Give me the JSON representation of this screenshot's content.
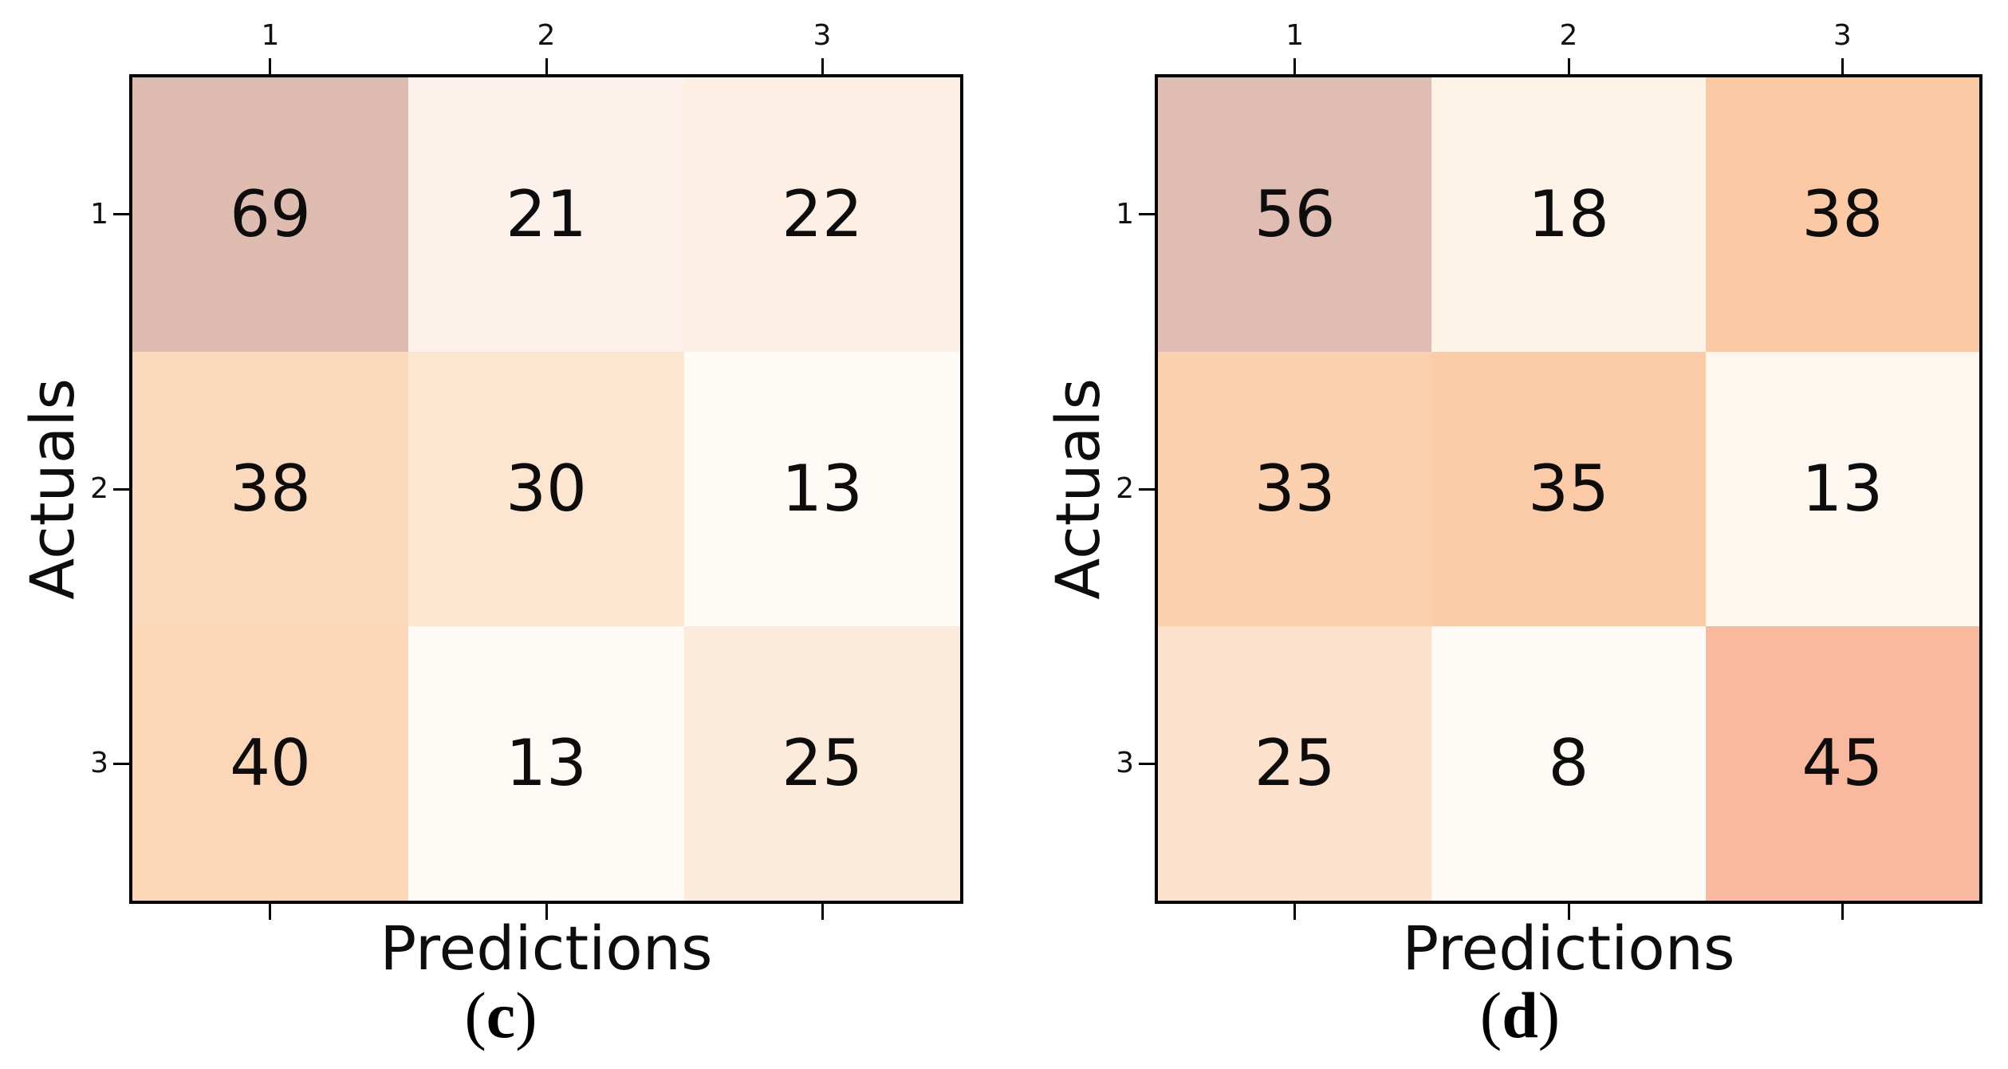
{
  "figure": {
    "background": "#ffffff",
    "border_color": "#000000",
    "text_color": "#0d0d0d"
  },
  "chart_data": [
    {
      "type": "heatmap",
      "name": "confusion-matrix-c",
      "xlabel": "Predictions",
      "ylabel": "Actuals",
      "x_tick_labels": [
        "1",
        "2",
        "3"
      ],
      "y_tick_labels": [
        "1",
        "2",
        "3"
      ],
      "values": [
        [
          69,
          21,
          22
        ],
        [
          38,
          30,
          13
        ],
        [
          40,
          13,
          25
        ]
      ],
      "cell_colors": [
        [
          "#dfbcb0",
          "#fcf2eb",
          "#fdefe3"
        ],
        [
          "#fbd9bc",
          "#fce6d0",
          "#fefaf5"
        ],
        [
          "#fbd7b8",
          "#fefaf5",
          "#fceada"
        ]
      ],
      "caption": "(c)",
      "caption_open": "(",
      "caption_letter": "c",
      "caption_close": ")"
    },
    {
      "type": "heatmap",
      "name": "confusion-matrix-d",
      "xlabel": "Predictions",
      "ylabel": "Actuals",
      "x_tick_labels": [
        "1",
        "2",
        "3"
      ],
      "y_tick_labels": [
        "1",
        "2",
        "3"
      ],
      "values": [
        [
          56,
          18,
          38
        ],
        [
          33,
          35,
          13
        ],
        [
          25,
          8,
          45
        ]
      ],
      "cell_colors": [
        [
          "#e0bdb2",
          "#fdf3e6",
          "#fbc9a4"
        ],
        [
          "#fbd0af",
          "#fbcba8",
          "#fdf7f0"
        ],
        [
          "#fce1cc",
          "#fefbf7",
          "#f9b99e"
        ]
      ],
      "caption": "(d)",
      "caption_open": "(",
      "caption_letter": "d",
      "caption_close": ")"
    }
  ]
}
